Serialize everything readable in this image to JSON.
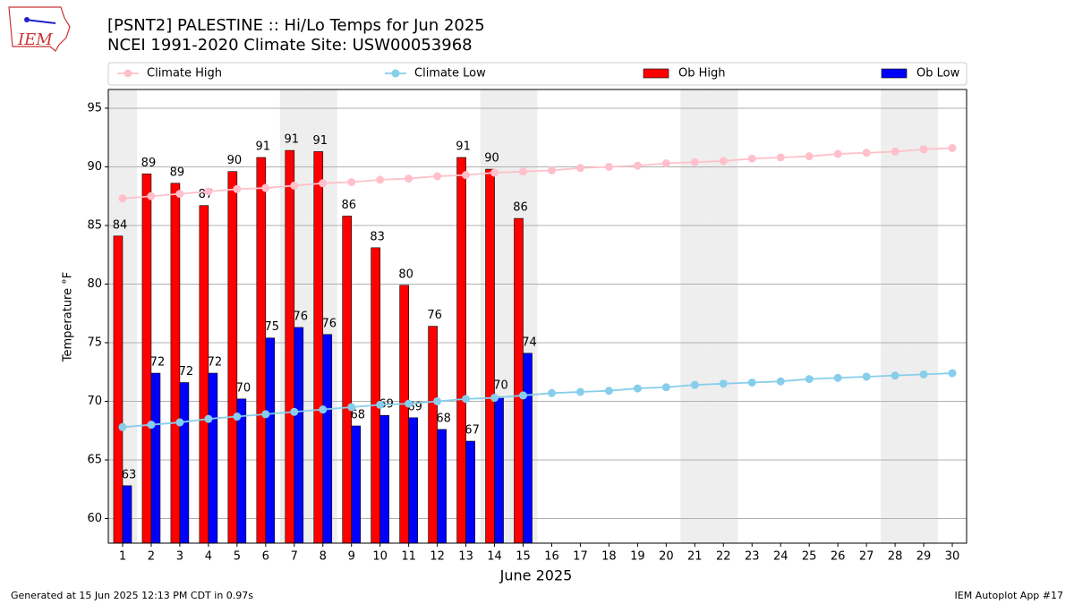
{
  "chart_data": {
    "type": "bar",
    "title": "[PSNT2] PALESTINE :: Hi/Lo Temps for Jun 2025",
    "subtitle": "NCEI 1991-2020 Climate Site: USW00053968",
    "xlabel": "June 2025",
    "ylabel": "Temperature °F",
    "x": [
      1,
      2,
      3,
      4,
      5,
      6,
      7,
      8,
      9,
      10,
      11,
      12,
      13,
      14,
      15,
      16,
      17,
      18,
      19,
      20,
      21,
      22,
      23,
      24,
      25,
      26,
      27,
      28,
      29,
      30
    ],
    "xlim": [
      0.5,
      30.5
    ],
    "xticks": [
      1,
      2,
      3,
      4,
      5,
      6,
      7,
      8,
      9,
      10,
      11,
      12,
      13,
      14,
      15,
      16,
      17,
      18,
      19,
      20,
      21,
      22,
      23,
      24,
      25,
      26,
      27,
      28,
      29,
      30
    ],
    "ylim": [
      57.9,
      96.6
    ],
    "yticks": [
      60,
      65,
      70,
      75,
      80,
      85,
      90,
      95
    ],
    "grid": true,
    "shaded_x": [
      1,
      7,
      8,
      14,
      15,
      21,
      22,
      28,
      29
    ],
    "series": [
      {
        "name": "Climate High",
        "type": "line",
        "color": "#ffc0cb",
        "values": [
          87.3,
          87.5,
          87.7,
          87.9,
          88.1,
          88.2,
          88.4,
          88.6,
          88.7,
          88.9,
          89.0,
          89.2,
          89.3,
          89.5,
          89.6,
          89.7,
          89.9,
          90.0,
          90.1,
          90.3,
          90.4,
          90.5,
          90.7,
          90.8,
          90.9,
          91.1,
          91.2,
          91.3,
          91.5,
          91.6
        ]
      },
      {
        "name": "Climate Low",
        "type": "line",
        "color": "#87ceeb",
        "values": [
          67.8,
          68.0,
          68.2,
          68.5,
          68.7,
          68.9,
          69.1,
          69.3,
          69.5,
          69.7,
          69.8,
          70.0,
          70.2,
          70.3,
          70.5,
          70.7,
          70.8,
          70.9,
          71.1,
          71.2,
          71.4,
          71.5,
          71.6,
          71.7,
          71.9,
          72.0,
          72.1,
          72.2,
          72.3,
          72.4
        ]
      },
      {
        "name": "Ob High",
        "type": "bar",
        "color": "#ff0000",
        "values": [
          84.1,
          89.4,
          88.6,
          86.7,
          89.6,
          90.8,
          91.4,
          91.3,
          85.8,
          83.1,
          79.9,
          76.4,
          90.8,
          89.8,
          85.6,
          null,
          null,
          null,
          null,
          null,
          null,
          null,
          null,
          null,
          null,
          null,
          null,
          null,
          null,
          null
        ],
        "value_labels": [
          "84",
          "89",
          "89",
          "87",
          "90",
          "91",
          "91",
          "91",
          "86",
          "83",
          "80",
          "76",
          "91",
          "90",
          "86",
          null,
          null,
          null,
          null,
          null,
          null,
          null,
          null,
          null,
          null,
          null,
          null,
          null,
          null,
          null
        ]
      },
      {
        "name": "Ob Low",
        "type": "bar",
        "color": "#0000ff",
        "values": [
          62.8,
          72.4,
          71.6,
          72.4,
          70.2,
          75.4,
          76.3,
          75.7,
          67.9,
          68.8,
          68.6,
          67.6,
          66.6,
          70.4,
          74.1,
          null,
          null,
          null,
          null,
          null,
          null,
          null,
          null,
          null,
          null,
          null,
          null,
          null,
          null,
          null
        ],
        "value_labels": [
          "63",
          "72",
          "72",
          "72",
          "70",
          "75",
          "76",
          "76",
          "68",
          "69",
          "69",
          "68",
          "67",
          "70",
          "74",
          null,
          null,
          null,
          null,
          null,
          null,
          null,
          null,
          null,
          null,
          null,
          null,
          null,
          null,
          null
        ]
      }
    ]
  },
  "logo": "IEM",
  "footer_left": "Generated at 15 Jun 2025 12:13 PM CDT in 0.97s",
  "footer_right": "IEM Autoplot App #17"
}
